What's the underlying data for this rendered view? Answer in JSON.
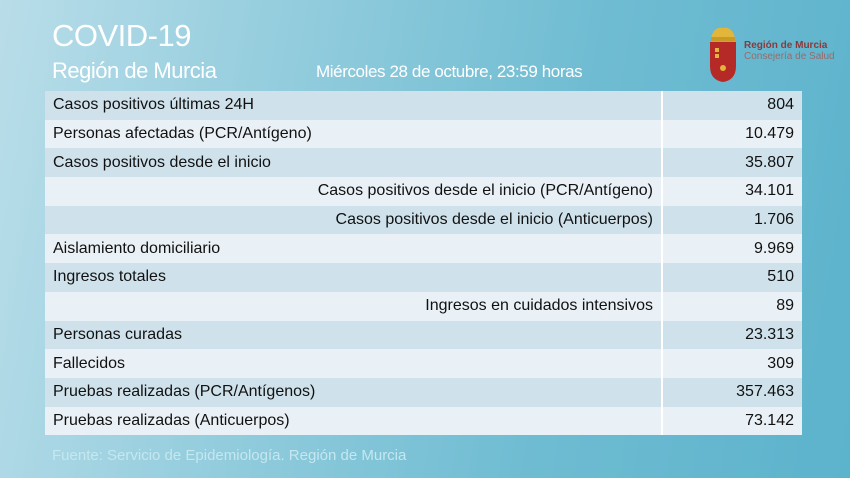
{
  "header": {
    "title": "COVID-19",
    "subtitle": "Región de Murcia",
    "date": "Miércoles 28 de octubre, 23:59 horas"
  },
  "logo": {
    "line1": "Región de Murcia",
    "line2": "Consejería de Salud"
  },
  "rows": [
    {
      "label": "Casos positivos últimas 24H",
      "value": "804"
    },
    {
      "label": "Personas afectadas (PCR/Antígeno)",
      "value": "10.479"
    },
    {
      "label": "Casos positivos desde el inicio",
      "value": "35.807"
    },
    {
      "label": "Casos positivos desde el inicio (PCR/Antígeno)",
      "value": "34.101",
      "indent": true
    },
    {
      "label": "Casos positivos desde el inicio (Anticuerpos)",
      "value": "1.706",
      "indent": true
    },
    {
      "label": "Aislamiento domiciliario",
      "value": "9.969"
    },
    {
      "label": "Ingresos totales",
      "value": "510"
    },
    {
      "label": "Ingresos en cuidados intensivos",
      "value": "89",
      "indent": true
    },
    {
      "label": "Personas curadas",
      "value": "23.313"
    },
    {
      "label": "Fallecidos",
      "value": "309"
    },
    {
      "label": "Pruebas realizadas (PCR/Antígenos)",
      "value": "357.463"
    },
    {
      "label": "Pruebas realizadas (Anticuerpos)",
      "value": "73.142"
    }
  ],
  "footer": {
    "source": "Fuente: Servicio de Epidemiología. Región de Murcia"
  }
}
